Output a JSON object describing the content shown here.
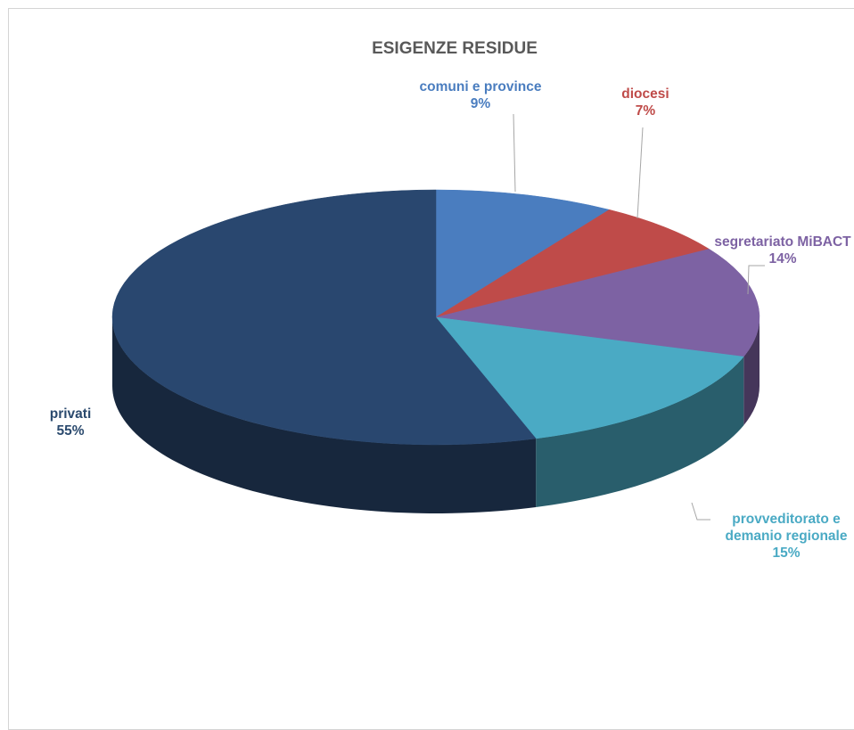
{
  "chart_data": {
    "type": "pie",
    "title": "ESIGENZE RESIDUE",
    "slices": [
      {
        "label": "comuni e province",
        "value": 9,
        "value_label": "9%",
        "color": "#4a7dbf",
        "label_color": "#4a7dbf"
      },
      {
        "label": "diocesi",
        "value": 7,
        "value_label": "7%",
        "color": "#bf4b49",
        "label_color": "#bf4b49"
      },
      {
        "label": "segretariato MiBACT",
        "value": 14,
        "value_label": "14%",
        "color": "#7d62a3",
        "label_color": "#7d62a3"
      },
      {
        "label": "provveditorato e demanio regionale",
        "label_lines": [
          "provveditorato e",
          "demanio regionale"
        ],
        "value": 15,
        "value_label": "15%",
        "color": "#4aaac4",
        "label_color": "#4aaac4"
      },
      {
        "label": "privati",
        "value": 55,
        "value_label": "55%",
        "color": "#29476f",
        "label_color": "#2b4a6e"
      }
    ],
    "legend": "none",
    "style": "3d"
  }
}
